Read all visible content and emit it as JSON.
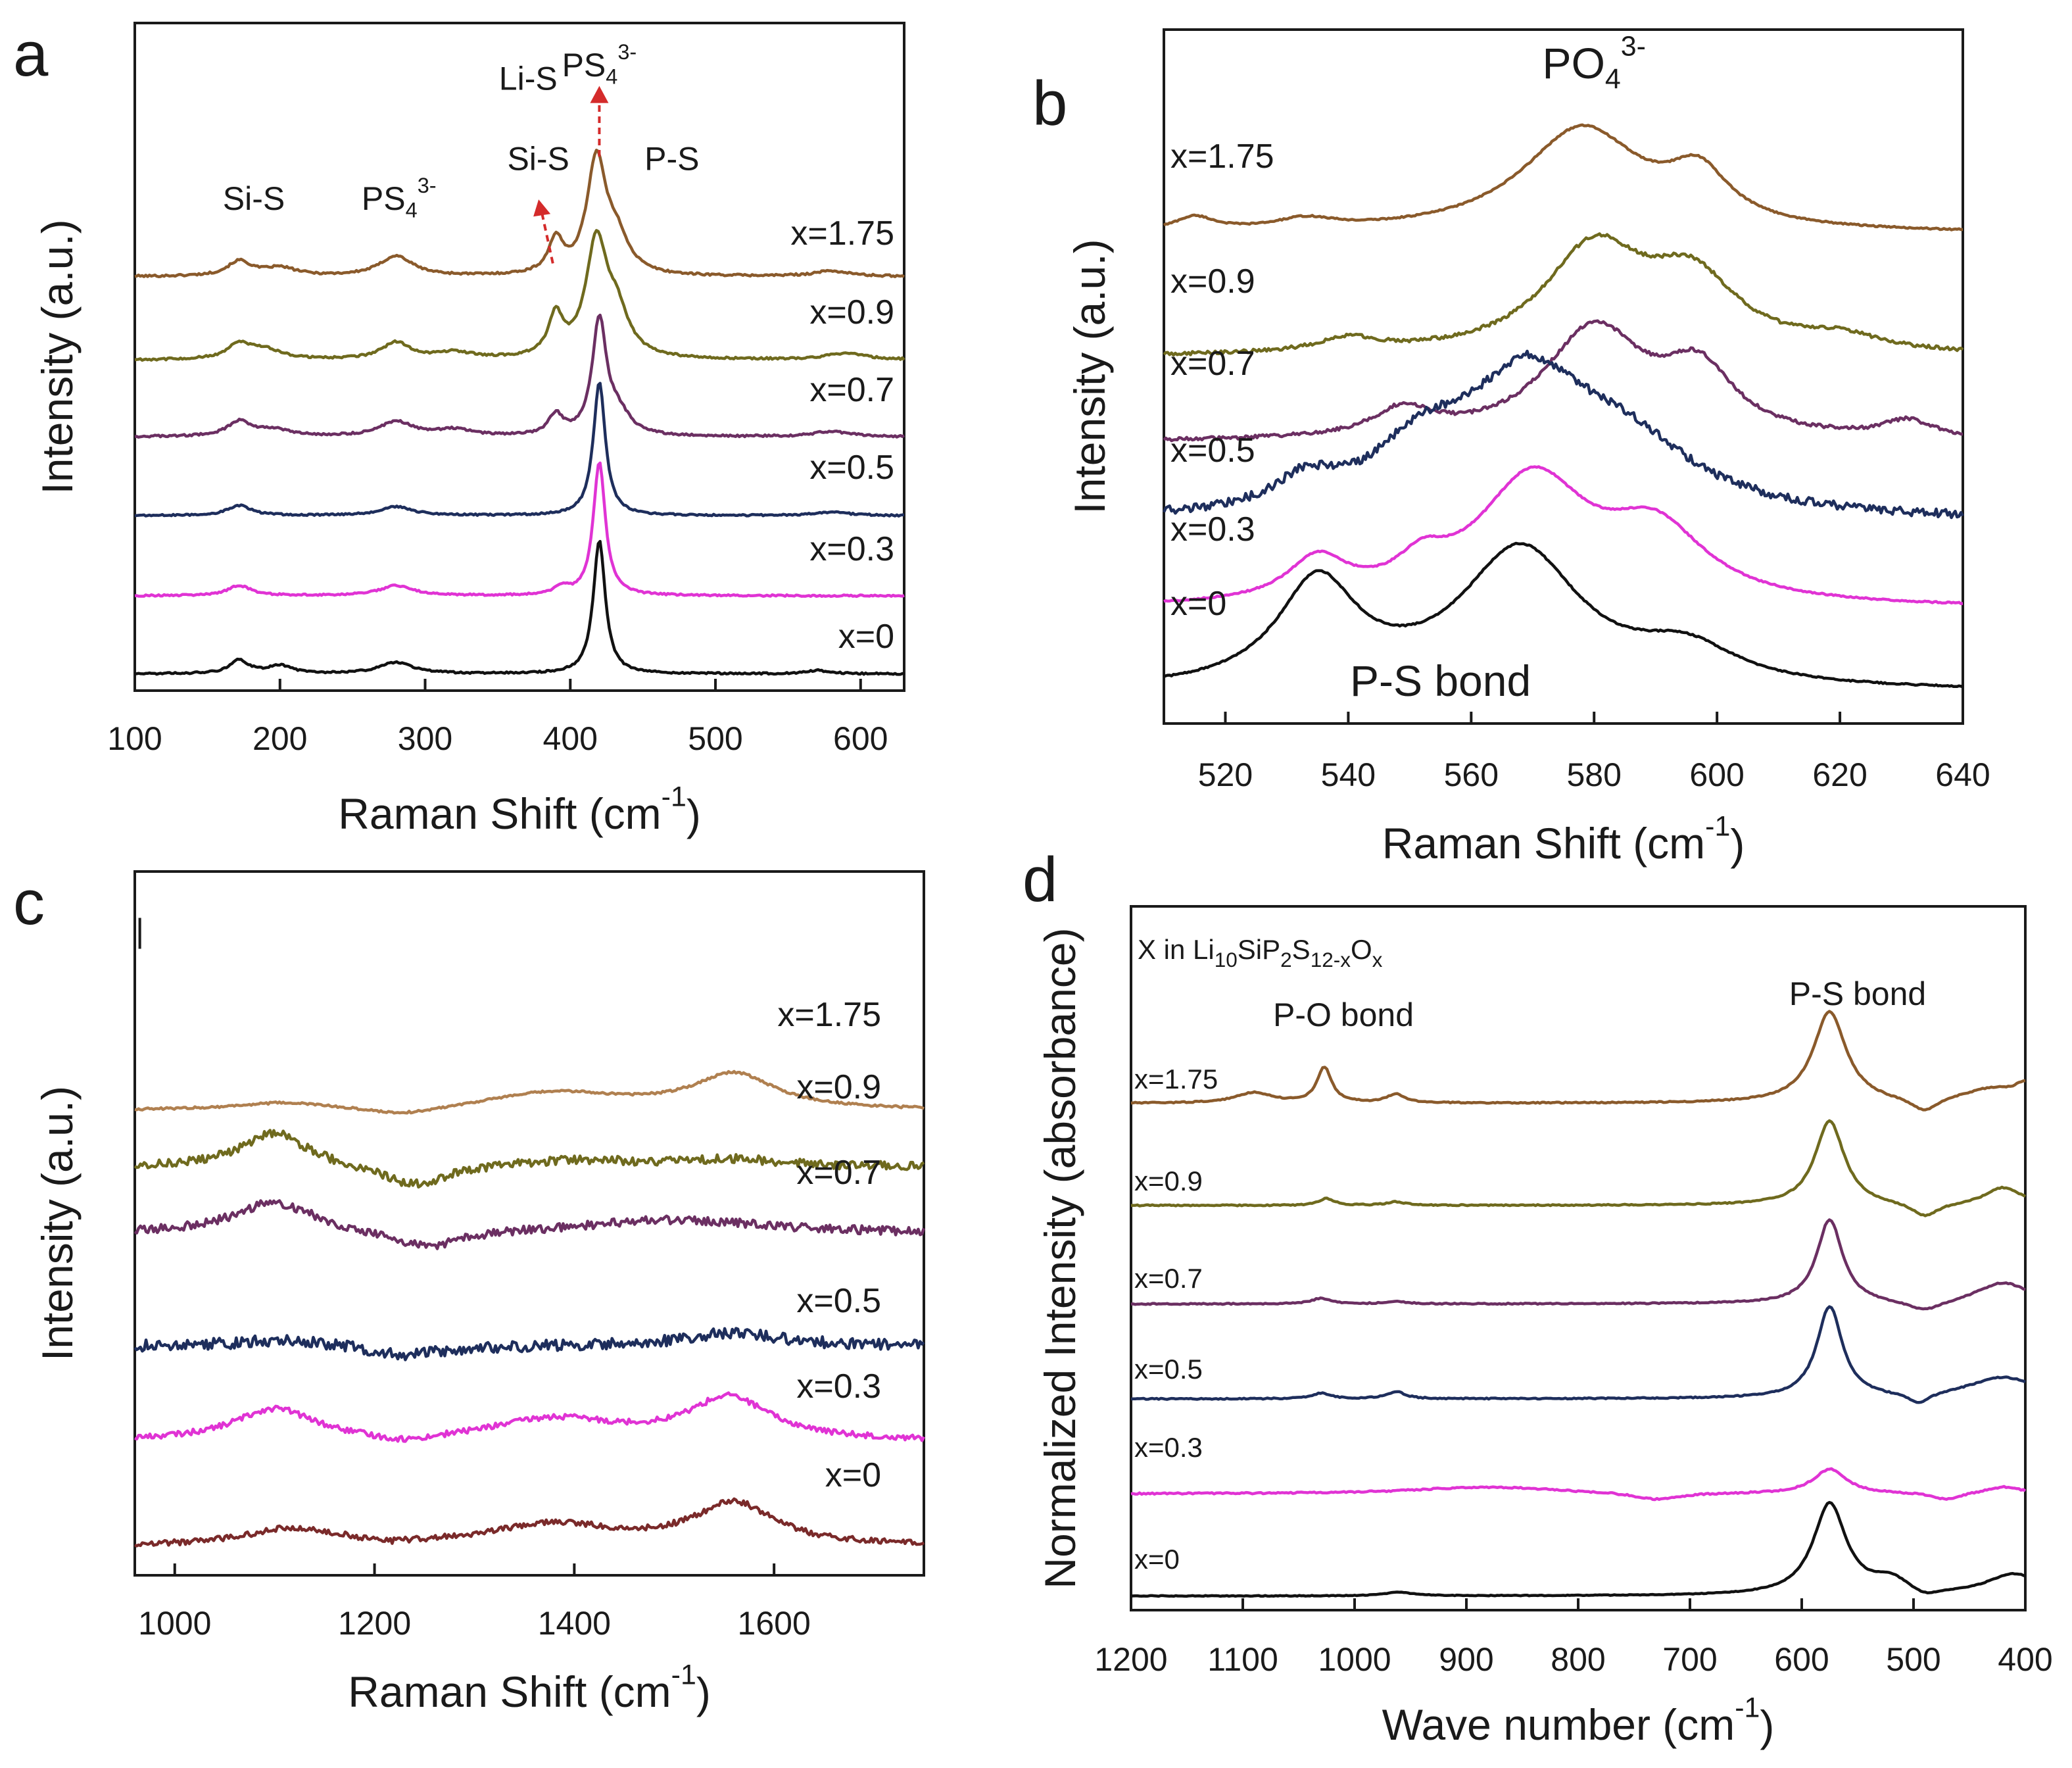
{
  "figure": {
    "panels": [
      "a",
      "b",
      "c",
      "d"
    ]
  },
  "chart_data": [
    {
      "id": "a",
      "type": "line",
      "panel_label": "a",
      "xlabel": "Raman Shift (cm",
      "xlabel_sup": "-1",
      "xlabel_end": ")",
      "ylabel": "Intensity (a.u.)",
      "xlim": [
        100,
        630
      ],
      "ylim": [
        0,
        1
      ],
      "xticks": [
        100,
        200,
        300,
        400,
        500,
        600
      ],
      "grid": false,
      "series": [
        {
          "name": "x=1.75",
          "color": "#8a5a2b",
          "baseline": 0.62,
          "noise": 0.0015,
          "peaks": [
            [
              172,
              0.022,
              10
            ],
            [
              200,
              0.012,
              14
            ],
            [
              280,
              0.03,
              14
            ],
            [
              390,
              0.05,
              6
            ],
            [
              418,
              0.17,
              8
            ],
            [
              432,
              0.05,
              10
            ],
            [
              580,
              0.008,
              15
            ]
          ]
        },
        {
          "name": "x=0.9",
          "color": "#6f6a1e",
          "baseline": 0.495,
          "noise": 0.0015,
          "peaks": [
            [
              172,
              0.022,
              10
            ],
            [
              190,
              0.014,
              14
            ],
            [
              280,
              0.025,
              12
            ],
            [
              320,
              0.01,
              15
            ],
            [
              390,
              0.06,
              6
            ],
            [
              418,
              0.17,
              9
            ],
            [
              432,
              0.06,
              10
            ],
            [
              590,
              0.01,
              16
            ]
          ]
        },
        {
          "name": "x=0.7",
          "color": "#6b2f62",
          "baseline": 0.38,
          "noise": 0.0015,
          "peaks": [
            [
              172,
              0.022,
              10
            ],
            [
              195,
              0.01,
              14
            ],
            [
              280,
              0.022,
              14
            ],
            [
              320,
              0.01,
              15
            ],
            [
              390,
              0.03,
              6
            ],
            [
              420,
              0.17,
              6
            ],
            [
              433,
              0.03,
              10
            ],
            [
              580,
              0.008,
              15
            ]
          ]
        },
        {
          "name": "x=0.5",
          "color": "#1e2e5c",
          "baseline": 0.262,
          "noise": 0.0012,
          "peaks": [
            [
              172,
              0.015,
              10
            ],
            [
              280,
              0.013,
              14
            ],
            [
              420,
              0.2,
              5
            ],
            [
              580,
              0.005,
              15
            ]
          ]
        },
        {
          "name": "x=0.3",
          "color": "#e033d4",
          "baseline": 0.142,
          "noise": 0.0012,
          "peaks": [
            [
              172,
              0.015,
              10
            ],
            [
              280,
              0.015,
              14
            ],
            [
              394,
              0.012,
              6
            ],
            [
              420,
              0.2,
              5
            ]
          ]
        },
        {
          "name": "x=0",
          "color": "#111111",
          "baseline": 0.025,
          "noise": 0.0012,
          "peaks": [
            [
              172,
              0.02,
              8
            ],
            [
              200,
              0.012,
              10
            ],
            [
              280,
              0.017,
              14
            ],
            [
              420,
              0.2,
              5
            ],
            [
              570,
              0.005,
              10
            ]
          ]
        }
      ],
      "annotations": [
        {
          "text": "Si-S",
          "x": 182,
          "y": 0.72
        },
        {
          "text": "PS",
          "sub": "4",
          "sup": "3-",
          "x": 282,
          "y": 0.72
        },
        {
          "text": "Si-S",
          "x": 378,
          "y": 0.78
        },
        {
          "text": "Li-S",
          "x": 371,
          "y": 0.9
        },
        {
          "text": "PS",
          "sub": "4",
          "sup": "3-",
          "x": 420,
          "y": 0.92
        },
        {
          "text": "P-S",
          "x": 470,
          "y": 0.78
        }
      ]
    },
    {
      "id": "b",
      "type": "line",
      "panel_label": "b",
      "xlabel": "Raman Shift (cm",
      "xlabel_sup": "-1",
      "xlabel_end": ")",
      "ylabel": "Intensity (a.u.)",
      "xlim": [
        510,
        640
      ],
      "ylim": [
        0,
        1
      ],
      "xticks": [
        520,
        540,
        560,
        580,
        600,
        620,
        640
      ],
      "grid": false,
      "series": [
        {
          "name": "x=1.75",
          "color": "#8a5a2b",
          "baseline": 0.705,
          "noise": 0.001,
          "peaks": [
            [
              515,
              0.02,
              4
            ],
            [
              533,
              0.015,
              6
            ],
            [
              578,
              0.15,
              12
            ],
            [
              597,
              0.07,
              6
            ]
          ]
        },
        {
          "name": "x=0.9",
          "color": "#6f6a1e",
          "baseline": 0.528,
          "noise": 0.0025,
          "peaks": [
            [
              540,
              0.02,
              6
            ],
            [
              580,
              0.15,
              10
            ],
            [
              596,
              0.1,
              9
            ],
            [
              620,
              0.02,
              8
            ]
          ]
        },
        {
          "name": "x=0.7",
          "color": "#6b2f62",
          "baseline": 0.405,
          "noise": 0.0025,
          "peaks": [
            [
              549,
              0.04,
              6
            ],
            [
              580,
              0.16,
              10
            ],
            [
              597,
              0.09,
              7
            ],
            [
              631,
              0.025,
              5
            ]
          ]
        },
        {
          "name": "x=0.5",
          "color": "#1e2e5c",
          "baseline": 0.29,
          "noise": 0.006,
          "peaks": [
            [
              533,
              0.04,
              6
            ],
            [
              552,
              0.08,
              10
            ],
            [
              569,
              0.18,
              12
            ],
            [
              585,
              0.09,
              14
            ]
          ]
        },
        {
          "name": "x=0.3",
          "color": "#e033d4",
          "baseline": 0.165,
          "noise": 0.001,
          "peaks": [
            [
              535,
              0.06,
              6
            ],
            [
              552,
              0.04,
              5
            ],
            [
              570,
              0.18,
              11
            ],
            [
              590,
              0.1,
              10
            ]
          ]
        },
        {
          "name": "x=0",
          "color": "#111111",
          "baseline": 0.045,
          "noise": 0.001,
          "peaks": [
            [
              535,
              0.15,
              8
            ],
            [
              568,
              0.2,
              12
            ],
            [
              595,
              0.05,
              10
            ]
          ]
        }
      ],
      "annotations": [
        {
          "text": "PO",
          "sub": "4",
          "sup": "3-",
          "x": 580,
          "y": 0.93
        },
        {
          "text": "P-S bond",
          "x": 555,
          "y": 0.04
        }
      ]
    },
    {
      "id": "c",
      "type": "line",
      "panel_label": "c",
      "xlabel": "Raman Shift (cm",
      "xlabel_sup": "-1",
      "xlabel_end": ")",
      "ylabel": "Intensity (a.u.)",
      "xlim": [
        960,
        1750
      ],
      "ylim": [
        0,
        1
      ],
      "xticks": [
        1000,
        1200,
        1400,
        1600
      ],
      "grid": false,
      "series": [
        {
          "name": "x=1.75",
          "color": "#b08050",
          "baseline": 0.66,
          "noise": 0.0015,
          "peaks": [
            [
              1110,
              0.01,
              60
            ],
            [
              1230,
              -0.012,
              50
            ],
            [
              1380,
              0.025,
              90
            ],
            [
              1560,
              0.05,
              50
            ]
          ]
        },
        {
          "name": "x=0.9",
          "color": "#6f6a1e",
          "baseline": 0.58,
          "noise": 0.006,
          "peaks": [
            [
              1100,
              0.05,
              40
            ],
            [
              1240,
              -0.03,
              40
            ],
            [
              1400,
              0.01,
              80
            ],
            [
              1560,
              0.01,
              60
            ]
          ]
        },
        {
          "name": "x=0.7",
          "color": "#6b2f62",
          "baseline": 0.485,
          "noise": 0.006,
          "peaks": [
            [
              1100,
              0.045,
              50
            ],
            [
              1250,
              -0.025,
              45
            ],
            [
              1500,
              0.02,
              120
            ]
          ]
        },
        {
          "name": "x=0.5",
          "color": "#1e2e5c",
          "baseline": 0.325,
          "noise": 0.008,
          "peaks": [
            [
              1110,
              0.01,
              60
            ],
            [
              1230,
              -0.015,
              40
            ],
            [
              1560,
              0.02,
              60
            ]
          ]
        },
        {
          "name": "x=0.3",
          "color": "#e033d4",
          "baseline": 0.19,
          "noise": 0.004,
          "peaks": [
            [
              1100,
              0.045,
              50
            ],
            [
              1230,
              -0.01,
              40
            ],
            [
              1380,
              0.03,
              80
            ],
            [
              1555,
              0.06,
              50
            ]
          ]
        },
        {
          "name": "x=0",
          "color": "#7a2a2a",
          "baseline": 0.04,
          "noise": 0.004,
          "peaks": [
            [
              1120,
              0.025,
              60
            ],
            [
              1210,
              -0.005,
              30
            ],
            [
              1380,
              0.03,
              80
            ],
            [
              1560,
              0.06,
              50
            ]
          ]
        }
      ],
      "annotations": [
        {
          "text": "|",
          "x": 965,
          "y": 0.9
        }
      ]
    },
    {
      "id": "d",
      "type": "line",
      "panel_label": "d",
      "xlabel": "Wave number (cm",
      "xlabel_sup": "-1",
      "xlabel_end": ")",
      "ylabel": "Normalized Intensity (absorbance)",
      "xlim": [
        1200,
        400
      ],
      "ylim": [
        0,
        1
      ],
      "xticks": [
        1200,
        1100,
        1000,
        900,
        800,
        700,
        600,
        500,
        400
      ],
      "grid": false,
      "title": {
        "prefix": "X in Li",
        "parts": [
          [
            "sub",
            "10"
          ],
          [
            "txt",
            "SiP"
          ],
          [
            "sub",
            "2"
          ],
          [
            "txt",
            "S"
          ],
          [
            "sub",
            "12-x"
          ],
          [
            "txt",
            "O"
          ],
          [
            "sub",
            "x"
          ]
        ]
      },
      "series": [
        {
          "name": "x=1.75",
          "color": "#8a5a2b",
          "baseline": 0.72,
          "noise": 0.0008,
          "peaks": [
            [
              1090,
              0.015,
              20
            ],
            [
              1027,
              0.05,
              8
            ],
            [
              963,
              0.012,
              10
            ],
            [
              575,
              0.13,
              18
            ],
            [
              490,
              -0.02,
              15
            ],
            [
              430,
              0.02,
              35
            ],
            [
              400,
              0.02,
              10
            ]
          ]
        },
        {
          "name": "x=0.9",
          "color": "#6f6a1e",
          "baseline": 0.575,
          "noise": 0.0008,
          "peaks": [
            [
              1025,
              0.01,
              8
            ],
            [
              963,
              0.005,
              10
            ],
            [
              575,
              0.12,
              16
            ],
            [
              490,
              -0.02,
              15
            ],
            [
              420,
              0.025,
              20
            ]
          ]
        },
        {
          "name": "x=0.7",
          "color": "#6b2f62",
          "baseline": 0.435,
          "noise": 0.0008,
          "peaks": [
            [
              1030,
              0.008,
              10
            ],
            [
              963,
              0.004,
              10
            ],
            [
              575,
              0.12,
              14
            ],
            [
              490,
              -0.015,
              20
            ],
            [
              420,
              0.03,
              30
            ]
          ]
        },
        {
          "name": "x=0.5",
          "color": "#1e2e5c",
          "baseline": 0.3,
          "noise": 0.0008,
          "peaks": [
            [
              1030,
              0.008,
              10
            ],
            [
              963,
              0.01,
              10
            ],
            [
              575,
              0.13,
              14
            ],
            [
              495,
              -0.015,
              12
            ],
            [
              420,
              0.03,
              40
            ]
          ]
        },
        {
          "name": "x=0.3",
          "color": "#e033d4",
          "baseline": 0.165,
          "noise": 0.001,
          "peaks": [
            [
              880,
              0.01,
              80
            ],
            [
              730,
              -0.01,
              25
            ],
            [
              575,
              0.035,
              18
            ],
            [
              470,
              -0.01,
              15
            ],
            [
              420,
              0.01,
              20
            ]
          ]
        },
        {
          "name": "x=0",
          "color": "#111111",
          "baseline": 0.02,
          "noise": 0.0005,
          "peaks": [
            [
              960,
              0.005,
              15
            ],
            [
              575,
              0.13,
              18
            ],
            [
              520,
              0.02,
              20
            ],
            [
              490,
              -0.01,
              15
            ],
            [
              410,
              0.03,
              30
            ]
          ]
        }
      ],
      "annotations": [
        {
          "text": "P-O bond",
          "x": 1010,
          "y": 0.83
        },
        {
          "text": "P-S bond",
          "x": 550,
          "y": 0.86
        }
      ]
    }
  ]
}
